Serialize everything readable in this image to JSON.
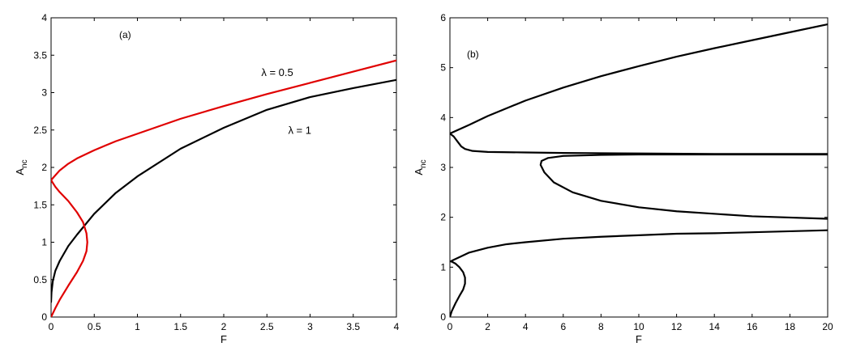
{
  "chart_data": [
    {
      "type": "line",
      "panel_label": "(a)",
      "xlabel": "F",
      "ylabel": "A",
      "ylabel_sub": "nc",
      "xlim": [
        0,
        4
      ],
      "ylim": [
        0,
        4
      ],
      "xticks": [
        0,
        0.5,
        1,
        1.5,
        2,
        2.5,
        3,
        3.5,
        4
      ],
      "yticks": [
        0,
        0.5,
        1,
        1.5,
        2,
        2.5,
        3,
        3.5,
        4
      ],
      "xtick_labels": [
        "0",
        "0.5",
        "1",
        "1.5",
        "2",
        "2.5",
        "3",
        "3.5",
        "4"
      ],
      "ytick_labels": [
        "0",
        "0.5",
        "1",
        "1.5",
        "2",
        "2.5",
        "3",
        "3.5",
        "4"
      ],
      "series": [
        {
          "name": "λ = 1",
          "color": "#000000",
          "x": [
            0,
            0.005,
            0.02,
            0.05,
            0.1,
            0.2,
            0.3,
            0.5,
            0.75,
            1,
            1.5,
            2,
            2.5,
            3,
            3.5,
            4
          ],
          "y": [
            0.2,
            0.33,
            0.48,
            0.62,
            0.75,
            0.95,
            1.1,
            1.38,
            1.66,
            1.88,
            2.25,
            2.53,
            2.77,
            2.94,
            3.06,
            3.17
          ]
        },
        {
          "name": "λ = 0.5 (upper branch)",
          "color": "#e00000",
          "x": [
            0,
            0.1,
            0.2,
            0.3,
            0.5,
            0.75,
            1,
            1.5,
            2,
            2.5,
            3,
            3.5,
            4
          ],
          "y": [
            1.83,
            1.96,
            2.05,
            2.12,
            2.23,
            2.35,
            2.45,
            2.65,
            2.82,
            2.98,
            3.13,
            3.28,
            3.43
          ]
        },
        {
          "name": "λ = 0.5 (lower branch)",
          "color": "#e00000",
          "x": [
            0,
            0.05,
            0.1,
            0.2,
            0.3,
            0.37,
            0.41,
            0.42,
            0.41,
            0.37,
            0.3,
            0.2,
            0.1,
            0.05,
            0
          ],
          "y": [
            0,
            0.12,
            0.23,
            0.42,
            0.6,
            0.75,
            0.88,
            1.0,
            1.12,
            1.27,
            1.4,
            1.55,
            1.67,
            1.74,
            1.83
          ]
        }
      ],
      "annotations": [
        {
          "text": "λ = 0.5",
          "x": 2.62,
          "y": 3.22
        },
        {
          "text": "λ = 1",
          "x": 2.88,
          "y": 2.45
        }
      ]
    },
    {
      "type": "line",
      "panel_label": "(b)",
      "xlabel": "F",
      "ylabel": "A",
      "ylabel_sub": "nc",
      "xlim": [
        0,
        20
      ],
      "ylim": [
        0,
        6
      ],
      "xticks": [
        0,
        2,
        4,
        6,
        8,
        10,
        12,
        14,
        16,
        18,
        20
      ],
      "yticks": [
        0,
        1,
        2,
        3,
        4,
        5,
        6
      ],
      "xtick_labels": [
        "0",
        "2",
        "4",
        "6",
        "8",
        "10",
        "12",
        "14",
        "16",
        "18",
        "20"
      ],
      "ytick_labels": [
        "0",
        "1",
        "2",
        "3",
        "4",
        "5",
        "6"
      ],
      "series": [
        {
          "color": "#000000",
          "x": [
            0,
            1,
            2,
            4,
            6,
            8,
            10,
            12,
            14,
            16,
            18,
            20
          ],
          "y": [
            3.68,
            3.85,
            4.03,
            4.34,
            4.6,
            4.83,
            5.03,
            5.22,
            5.39,
            5.55,
            5.71,
            5.87
          ]
        },
        {
          "color": "#000000",
          "x": [
            0,
            0.2,
            0.4,
            0.6,
            0.8,
            1.2,
            2,
            4,
            6,
            10,
            14,
            20
          ],
          "y": [
            3.68,
            3.62,
            3.52,
            3.42,
            3.37,
            3.33,
            3.31,
            3.3,
            3.29,
            3.28,
            3.27,
            3.27
          ]
        },
        {
          "color": "#000000",
          "x": [
            20,
            16,
            12,
            10,
            8,
            6.5,
            5.5,
            5.0,
            4.8,
            4.85,
            5.2,
            6,
            8,
            10,
            12,
            16,
            20
          ],
          "y": [
            1.97,
            2.02,
            2.12,
            2.2,
            2.33,
            2.5,
            2.7,
            2.9,
            3.05,
            3.13,
            3.19,
            3.23,
            3.25,
            3.26,
            3.26,
            3.26,
            3.26
          ]
        },
        {
          "color": "#000000",
          "x": [
            0,
            0.1,
            0.3,
            0.5,
            0.7,
            0.8,
            0.8,
            0.7,
            0.5,
            0.3,
            0.1,
            0
          ],
          "y": [
            0,
            0.12,
            0.28,
            0.42,
            0.55,
            0.67,
            0.79,
            0.9,
            1.0,
            1.07,
            1.11,
            1.12
          ]
        },
        {
          "color": "#000000",
          "x": [
            0.1,
            0.5,
            1,
            2,
            3,
            4,
            6,
            8,
            10,
            12,
            14,
            16,
            18,
            20
          ],
          "y": [
            1.13,
            1.2,
            1.29,
            1.39,
            1.46,
            1.5,
            1.57,
            1.61,
            1.64,
            1.67,
            1.68,
            1.7,
            1.72,
            1.74
          ]
        }
      ]
    }
  ]
}
